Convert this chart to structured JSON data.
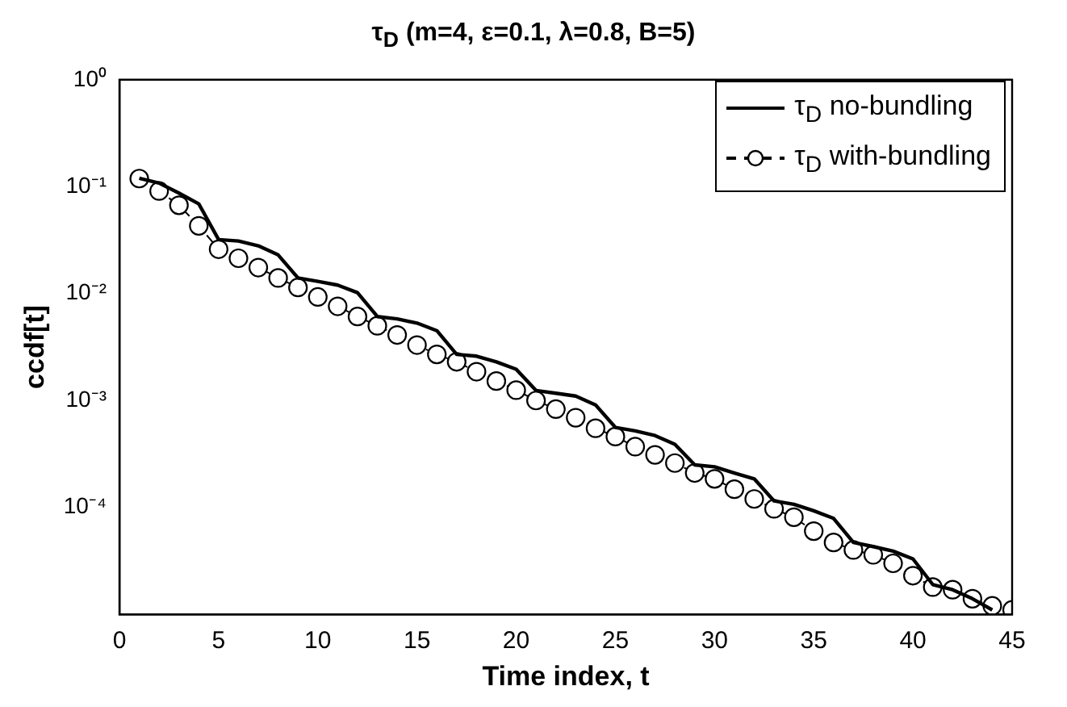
{
  "chart_data": {
    "type": "line",
    "title": "τ$_{D}$ (m=4, ε=0.1, λ=0.8,  B=5)",
    "xlabel": "Time index, t",
    "ylabel": "ccdf[t]",
    "x": [
      1,
      2,
      3,
      4,
      5,
      6,
      7,
      8,
      9,
      10,
      11,
      12,
      13,
      14,
      15,
      16,
      17,
      18,
      19,
      20,
      21,
      22,
      23,
      24,
      25,
      26,
      27,
      28,
      29,
      30,
      31,
      32,
      33,
      34,
      35,
      36,
      37,
      38,
      39,
      40,
      41,
      42,
      43,
      44,
      45
    ],
    "series": [
      {
        "name": "τ$_{D}$ no-bundling",
        "color": "#000000",
        "marker": "none",
        "line_style": "solid",
        "x": [
          1,
          2,
          3,
          4,
          5,
          6,
          7,
          8,
          9,
          10,
          11,
          12,
          13,
          14,
          15,
          16,
          17,
          18,
          19,
          20,
          21,
          22,
          23,
          24,
          25,
          26,
          27,
          28,
          29,
          30,
          31,
          32,
          33,
          34,
          35,
          36,
          37,
          38,
          39,
          40,
          41,
          42,
          43,
          44
        ],
        "values": [
          0.12,
          0.108,
          0.087,
          0.069,
          0.032,
          0.031,
          0.028,
          0.023,
          0.014,
          0.013,
          0.012,
          0.0102,
          0.0061,
          0.0058,
          0.0053,
          0.0045,
          0.0027,
          0.0026,
          0.0023,
          0.00196,
          0.00124,
          0.00117,
          0.0011,
          0.00091,
          0.00056,
          0.00052,
          0.00047,
          0.00039,
          0.00025,
          0.00024,
          0.00021,
          0.000185,
          0.000115,
          0.000107,
          9.3e-05,
          7.9e-05,
          4.7e-05,
          4.3e-05,
          3.9e-05,
          3.3e-05,
          1.9e-05,
          1.7e-05,
          1.4e-05,
          1.1e-05
        ]
      },
      {
        "name": "τ$_{D}$ with-bundling",
        "color": "#000000",
        "marker": "circle",
        "line_style": "dashed",
        "values": [
          0.119,
          0.091,
          0.067,
          0.043,
          0.026,
          0.0214,
          0.0175,
          0.014,
          0.0114,
          0.0093,
          0.0076,
          0.0061,
          0.005,
          0.0041,
          0.0033,
          0.0027,
          0.0023,
          0.00186,
          0.00152,
          0.00125,
          0.001,
          0.00083,
          0.00069,
          0.00055,
          0.00046,
          0.00037,
          0.00031,
          0.00026,
          0.00021,
          0.000185,
          0.000148,
          0.00012,
          9.7e-05,
          8.1e-05,
          6e-05,
          4.7e-05,
          4e-05,
          3.6e-05,
          3e-05,
          2.3e-05,
          1.8e-05,
          1.7e-05,
          1.4e-05,
          1.2e-05,
          1.1e-05
        ]
      }
    ],
    "xlim": [
      0,
      45
    ],
    "xticks": [
      0,
      5,
      10,
      15,
      20,
      25,
      30,
      35,
      40,
      45
    ],
    "ylim": [
      1e-05,
      1
    ],
    "yticks": [
      {
        "value": 0.0001,
        "label": "10⁻⁴"
      },
      {
        "value": 0.001,
        "label": "10⁻³"
      },
      {
        "value": 0.01,
        "label": "10⁻²"
      },
      {
        "value": 0.1,
        "label": "10⁻¹"
      },
      {
        "value": 1,
        "label": "10⁰"
      }
    ],
    "log": "y",
    "grid": false,
    "legend": "top right"
  }
}
